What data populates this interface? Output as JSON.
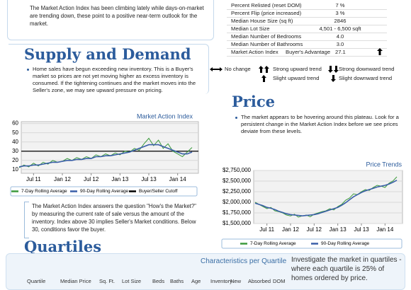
{
  "intro": {
    "text": "The Market Action Index has been climbing lately while days-on-market are trending down, these point to a positive near-term outlook for the market."
  },
  "stats": {
    "rows": [
      [
        "Percent Relisted (reset DOM)",
        "7 %"
      ],
      [
        "Percent Flip (price increased)",
        "3 %"
      ],
      [
        "Median House Size (sq ft)",
        "2846"
      ],
      [
        "Median Lot Size",
        "4,501 - 6,500 sqft"
      ],
      [
        "Median Number of Bedrooms",
        "4.0"
      ],
      [
        "Median Number of Bathrooms",
        "3.0"
      ],
      [
        "Market Action Index",
        "Buyer's Advantage",
        "27.1"
      ]
    ]
  },
  "trend_legend": [
    "No change",
    "Strong upward trend",
    "Strong downward trend",
    "Slight upward trend",
    "Slight downward trend"
  ],
  "supply": {
    "heading": "Supply and Demand",
    "text": "Home sales have begun exceeding new inventory. This is a Buyer's market so prices are not yet moving higher as excess inventory is consumed.  If the tightening continues and the market moves into the Seller's zone, we may see upward pressure on pricing."
  },
  "mai_note": "The Market Action Index answers the question \"How's the Market?\" by measuring the current rate of sale versus the amount of the inventory.  Index above 30 implies Seller's Market conditions. Below 30, conditions favor the buyer.",
  "price": {
    "heading": "Price",
    "text": "The market appears to be hovering around this plateau. Look for a persistent change in the Market Action Index before we see prices deviate from these levels."
  },
  "quartiles": {
    "heading": "Quartiles",
    "subtitle": "Characteristics per Quartile",
    "text": "Investigate the market in quartiles - where each quartile is 25% of homes ordered by price.",
    "columns": [
      "Quartile",
      "Median Price",
      "Sq. Ft.",
      "Lot Size",
      "Beds",
      "Baths",
      "Age",
      "Inventory",
      "New",
      "Absorbed",
      "DOM"
    ]
  },
  "chart_data": [
    {
      "type": "line",
      "title": "Market Action Index",
      "categories": [
        null,
        null,
        null,
        "Jul 11",
        null,
        null,
        null,
        null,
        null,
        "Jan 12",
        null,
        null,
        null,
        null,
        null,
        "Jul 12",
        null,
        null,
        null,
        null,
        null,
        "Jan 13",
        null,
        null,
        null,
        null,
        null,
        "Jul 13",
        null,
        null,
        null,
        null,
        null,
        "Jan 14",
        null,
        null,
        null
      ],
      "series": [
        {
          "name": "7-Day Rolling Average",
          "color": "#3c9a3c",
          "values": [
            12,
            15,
            13,
            17,
            14,
            18,
            16,
            20,
            18,
            19,
            22,
            20,
            23,
            21,
            24,
            22,
            26,
            24,
            27,
            25,
            28,
            26,
            30,
            29,
            33,
            31,
            38,
            44,
            36,
            42,
            33,
            38,
            30,
            27,
            24,
            29,
            34
          ]
        },
        {
          "name": "90-Day Rolling Average",
          "color": "#3a5fa8",
          "values": [
            13,
            14,
            14,
            15,
            15,
            16,
            17,
            18,
            18,
            19,
            20,
            20,
            21,
            21,
            22,
            22,
            24,
            24,
            25,
            25,
            26,
            27,
            28,
            29,
            31,
            33,
            35,
            37,
            37,
            37,
            35,
            33,
            31,
            29,
            27,
            27,
            29
          ]
        }
      ],
      "reference_line": {
        "name": "Buyer/Seller Cutoff",
        "value": 30,
        "color": "#000000"
      },
      "ylim": [
        6,
        62
      ],
      "yticks": [
        10,
        20,
        30,
        40,
        50,
        60
      ],
      "grid": true
    },
    {
      "type": "line",
      "title": "Price Trends",
      "categories": [
        null,
        null,
        null,
        "Jul 11",
        null,
        null,
        null,
        null,
        null,
        "Jan 12",
        null,
        null,
        null,
        null,
        null,
        "Jul 12",
        null,
        null,
        null,
        null,
        null,
        "Jan 13",
        null,
        null,
        null,
        null,
        null,
        "Jul 13",
        null,
        null,
        null,
        null,
        null,
        "Jan 14",
        null,
        null,
        null
      ],
      "series": [
        {
          "name": "7-Day Rolling Average",
          "color": "#3c9a3c",
          "values": [
            2000000,
            1950000,
            1900000,
            1850000,
            1880000,
            1800000,
            1780000,
            1750000,
            1700000,
            1680000,
            1720000,
            1650000,
            1680000,
            1700000,
            1660000,
            1720000,
            1750000,
            1780000,
            1800000,
            1850000,
            1820000,
            1900000,
            1950000,
            2050000,
            2100000,
            2200000,
            2180000,
            2250000,
            2300000,
            2280000,
            2350000,
            2400000,
            2380000,
            2350000,
            2450000,
            2500000,
            2600000
          ]
        },
        {
          "name": "90-Day Rolling Average",
          "color": "#3a5fa8",
          "values": [
            1980000,
            1950000,
            1920000,
            1880000,
            1860000,
            1830000,
            1790000,
            1760000,
            1730000,
            1710000,
            1700000,
            1690000,
            1680000,
            1690000,
            1700000,
            1710000,
            1730000,
            1760000,
            1790000,
            1820000,
            1850000,
            1880000,
            1930000,
            1990000,
            2060000,
            2130000,
            2180000,
            2230000,
            2270000,
            2300000,
            2330000,
            2360000,
            2380000,
            2400000,
            2430000,
            2470000,
            2520000
          ]
        }
      ],
      "ylim": [
        1500000,
        2750000
      ],
      "yticks": [
        {
          "value": 1500000,
          "label": "$1,500,000"
        },
        {
          "value": 1750000,
          "label": "$1,750,000"
        },
        {
          "value": 2000000,
          "label": "$2,000,000"
        },
        {
          "value": 2250000,
          "label": "$2,250,000"
        },
        {
          "value": 2500000,
          "label": "$2,500,000"
        },
        {
          "value": 2750000,
          "label": "$2,750,000"
        }
      ],
      "grid": true
    }
  ]
}
